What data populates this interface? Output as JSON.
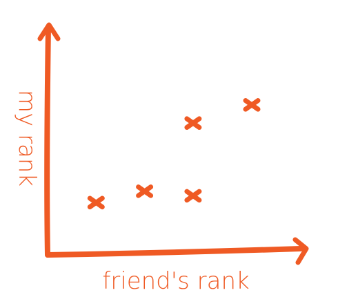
{
  "chart_data": {
    "type": "scatter",
    "title": "",
    "xlabel": "friend's rank",
    "ylabel": "my rank",
    "xlim": [
      0,
      10
    ],
    "ylim": [
      0,
      10
    ],
    "grid": false,
    "ticks": false,
    "marker": "x",
    "color": "#ef5a24",
    "points": [
      {
        "x": 1.9,
        "y": 2.3
      },
      {
        "x": 3.8,
        "y": 2.8
      },
      {
        "x": 5.7,
        "y": 2.6
      },
      {
        "x": 5.7,
        "y": 5.8
      },
      {
        "x": 8.0,
        "y": 6.6
      }
    ]
  }
}
